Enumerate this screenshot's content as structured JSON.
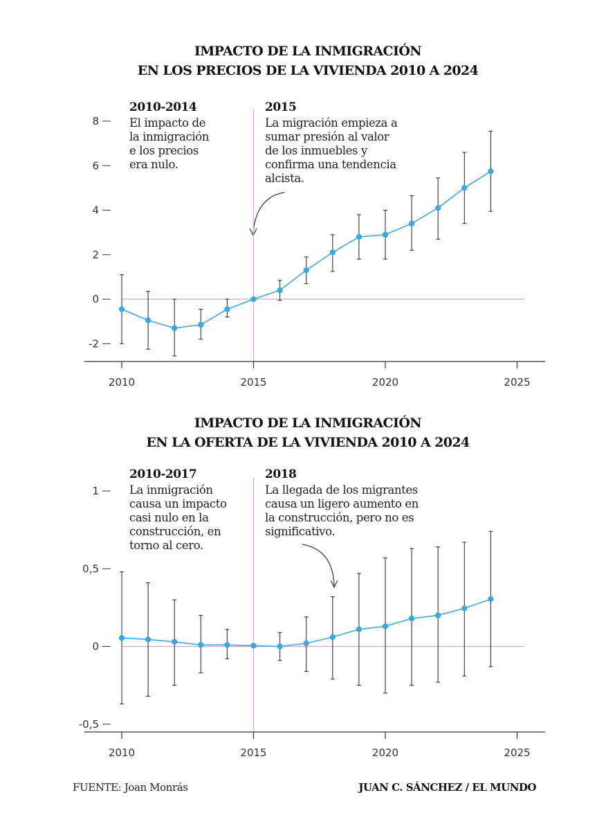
{
  "colors": {
    "series": "#3aa9e0",
    "errorbar": "#333333",
    "reference": "#d7a6c4",
    "axis": "#333333"
  },
  "footer": {
    "source": "FUENTE: Joan Monrás",
    "credit": "JUAN C. SÁNCHEZ / EL MUNDO"
  },
  "chart_data": [
    {
      "type": "line",
      "title_lines": [
        "IMPACTO DE LA INMIGRACIÓN",
        "EN LOS PRECIOS DE LA VIVIENDA 2010 A 2024"
      ],
      "xlim": [
        2010,
        2025
      ],
      "ylim": [
        -2.8,
        8
      ],
      "x_ticks": [
        2010,
        2015,
        2020,
        2025
      ],
      "y_ticks": [
        8,
        6,
        4,
        2,
        0,
        -2
      ],
      "y_tick_labels": [
        "8",
        "6",
        "4",
        "2",
        "0",
        "-2"
      ],
      "reference_year": 2015,
      "x": [
        2010,
        2011,
        2012,
        2013,
        2014,
        2015,
        2016,
        2017,
        2018,
        2019,
        2020,
        2021,
        2022,
        2023,
        2024
      ],
      "values": [
        -0.45,
        -0.95,
        -1.3,
        -1.15,
        -0.45,
        0.0,
        0.4,
        1.3,
        2.1,
        2.8,
        2.9,
        3.4,
        4.1,
        5.0,
        5.75
      ],
      "lower": [
        -2.0,
        -2.25,
        -2.55,
        -1.8,
        -0.8,
        0.0,
        -0.05,
        0.7,
        1.25,
        1.8,
        1.8,
        2.2,
        2.7,
        3.4,
        3.95
      ],
      "upper": [
        1.1,
        0.35,
        0.0,
        -0.45,
        0.0,
        0.0,
        0.85,
        1.9,
        2.9,
        3.8,
        4.0,
        4.65,
        5.45,
        6.6,
        7.55
      ],
      "annotations": [
        {
          "heading": "2010-2014",
          "lines": [
            "El impacto de",
            "la inmigración",
            "e los precios",
            "era nulo."
          ]
        },
        {
          "heading": "2015",
          "lines": [
            "La migración empieza a",
            "sumar presión al valor",
            "de los inmuebles y",
            "confirma una tendencia",
            "alcista."
          ]
        }
      ]
    },
    {
      "type": "line",
      "title_lines": [
        "IMPACTO DE LA INMIGRACIÓN",
        "EN LA OFERTA DE LA VIVIENDA 2010 A 2024"
      ],
      "xlim": [
        2010,
        2025
      ],
      "ylim": [
        -0.55,
        1
      ],
      "x_ticks": [
        2010,
        2015,
        2020,
        2025
      ],
      "y_ticks": [
        1,
        0.5,
        0,
        -0.5
      ],
      "y_tick_labels": [
        "1",
        "0,5",
        "0",
        "-0,5"
      ],
      "reference_year": 2015,
      "x": [
        2010,
        2011,
        2012,
        2013,
        2014,
        2015,
        2016,
        2017,
        2018,
        2019,
        2020,
        2021,
        2022,
        2023,
        2024
      ],
      "values": [
        0.055,
        0.045,
        0.03,
        0.01,
        0.01,
        0.005,
        0.0,
        0.02,
        0.06,
        0.11,
        0.13,
        0.18,
        0.2,
        0.245,
        0.305
      ],
      "lower": [
        -0.37,
        -0.32,
        -0.25,
        -0.17,
        -0.08,
        0.005,
        -0.09,
        -0.16,
        -0.21,
        -0.25,
        -0.3,
        -0.25,
        -0.23,
        -0.19,
        -0.13
      ],
      "upper": [
        0.48,
        0.41,
        0.3,
        0.2,
        0.11,
        0.005,
        0.09,
        0.19,
        0.32,
        0.47,
        0.57,
        0.63,
        0.64,
        0.67,
        0.74
      ],
      "annotations": [
        {
          "heading": "2010-2017",
          "lines": [
            "La inmigración",
            "causa un impacto",
            "casi nulo en la",
            "construcción, en",
            "torno al cero."
          ]
        },
        {
          "heading": "2018",
          "lines": [
            "La llegada de los migrantes",
            "causa un ligero aumento en",
            "la construcción, pero no es",
            "significativo."
          ]
        }
      ]
    }
  ]
}
